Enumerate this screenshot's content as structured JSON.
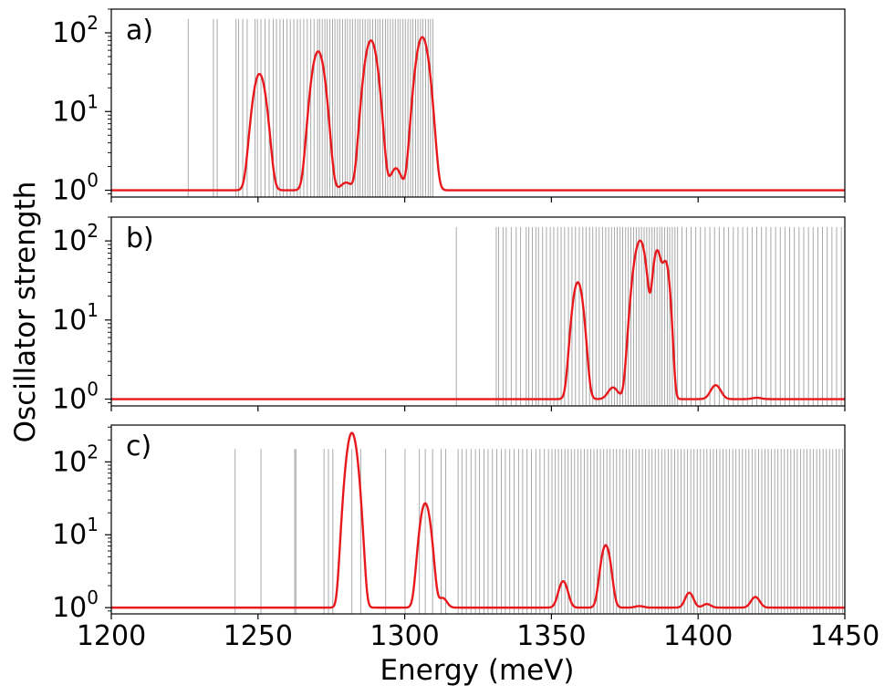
{
  "figure": {
    "ylabel": "Oscillator strength",
    "xlabel": "Energy (meV)"
  },
  "chart_data": [
    {
      "type": "line",
      "panel_label": "a)",
      "y_scale": "log",
      "xlim": [
        1200,
        1450
      ],
      "ylim": [
        0.82,
        200
      ],
      "y_ticks": [
        {
          "base": "10",
          "exp": "0"
        },
        {
          "base": "10",
          "exp": "1"
        },
        {
          "base": "10",
          "exp": "2"
        }
      ],
      "grid": false,
      "stick_height": 150,
      "stick_color": "#808080",
      "line_color": "#e8191c",
      "baseline": 1,
      "peaks": [
        {
          "x": 1250.5,
          "y": 30,
          "width": 1.8
        },
        {
          "x": 1270.5,
          "y": 58,
          "width": 1.8
        },
        {
          "x": 1280.0,
          "y": 1.25,
          "width": 1.6
        },
        {
          "x": 1288.5,
          "y": 80,
          "width": 1.8
        },
        {
          "x": 1297.0,
          "y": 1.9,
          "width": 1.6
        },
        {
          "x": 1306.0,
          "y": 88,
          "width": 1.8
        }
      ],
      "sticks": [
        1226.2,
        1234.8,
        1236.1,
        1242.5,
        1243.4,
        1244.8,
        1246.3,
        1249.0,
        1249.8,
        1251.0,
        1252.4,
        1253.8,
        1255.2,
        1256.3,
        1257.5,
        1258.6,
        1259.9,
        1261.0,
        1262.2,
        1263.4,
        1264.4,
        1265.6,
        1266.8,
        1268.0,
        1269.1,
        1270.3,
        1271.0,
        1271.9,
        1272.8,
        1273.6,
        1274.5,
        1275.4,
        1276.2,
        1277.1,
        1277.9,
        1278.8,
        1279.7,
        1280.5,
        1281.4,
        1282.2,
        1283.1,
        1284.0,
        1284.8,
        1285.7,
        1286.5,
        1287.4,
        1288.2,
        1289.1,
        1290.0,
        1290.8,
        1291.6,
        1292.5,
        1293.4,
        1294.2,
        1295.1,
        1296.0,
        1296.8,
        1297.7,
        1298.5,
        1299.4,
        1300.2,
        1301.1,
        1302.0,
        1302.8,
        1303.7,
        1304.5,
        1305.4,
        1306.2,
        1307.1,
        1308.0,
        1308.8,
        1309.6
      ]
    },
    {
      "type": "line",
      "panel_label": "b)",
      "y_scale": "log",
      "xlim": [
        1200,
        1450
      ],
      "ylim": [
        0.82,
        200
      ],
      "y_ticks": [
        {
          "base": "10",
          "exp": "0"
        },
        {
          "base": "10",
          "exp": "1"
        },
        {
          "base": "10",
          "exp": "2"
        }
      ],
      "grid": false,
      "stick_height": 150,
      "stick_color": "#808080",
      "line_color": "#e8191c",
      "baseline": 1,
      "peaks": [
        {
          "x": 1359.0,
          "y": 30,
          "width": 1.5
        },
        {
          "x": 1371.0,
          "y": 1.4,
          "width": 1.6
        },
        {
          "x": 1379.5,
          "y": 65,
          "width": 1.6
        },
        {
          "x": 1381.0,
          "y": 50,
          "width": 1.4
        },
        {
          "x": 1386.0,
          "y": 75,
          "width": 1.2
        },
        {
          "x": 1389.0,
          "y": 52,
          "width": 1.1
        },
        {
          "x": 1406.0,
          "y": 1.5,
          "width": 1.6
        },
        {
          "x": 1420.0,
          "y": 1.04,
          "width": 1.5
        }
      ],
      "sticks": [
        1317.6,
        1331.2,
        1332.0,
        1333.5,
        1334.6,
        1336.3,
        1338.0,
        1339.5,
        1341.4,
        1342.3,
        1343.5,
        1344.7,
        1345.6,
        1347.0,
        1348.3,
        1349.6,
        1350.8,
        1352.1,
        1353.3,
        1354.5,
        1355.8,
        1357.0,
        1358.2,
        1359.5,
        1360.7,
        1361.8,
        1363.0,
        1364.1,
        1365.2,
        1366.3,
        1367.4,
        1368.5,
        1369.5,
        1370.5,
        1371.5,
        1372.4,
        1373.4,
        1374.3,
        1375.3,
        1376.2,
        1377.1,
        1378.0,
        1378.9,
        1379.8,
        1380.7,
        1381.6,
        1382.5,
        1383.4,
        1384.3,
        1385.1,
        1386.0,
        1386.9,
        1387.7,
        1388.6,
        1389.5,
        1390.3,
        1391.2,
        1392.1,
        1393.0,
        1394.5,
        1396.0,
        1397.6,
        1399.2,
        1400.8,
        1402.4,
        1404.0,
        1405.6,
        1407.2,
        1408.8,
        1410.4,
        1412.0,
        1413.6,
        1415.2,
        1416.8,
        1418.4,
        1420.0,
        1421.6,
        1423.2,
        1424.8,
        1426.4,
        1428.0,
        1429.6,
        1431.2,
        1432.8,
        1434.4,
        1436.0,
        1437.6,
        1439.2,
        1440.8,
        1442.4,
        1444.0,
        1445.6,
        1447.2,
        1448.8
      ]
    },
    {
      "type": "line",
      "panel_label": "c)",
      "y_scale": "log",
      "xlim": [
        1200,
        1450
      ],
      "ylim": [
        0.82,
        320
      ],
      "y_ticks": [
        {
          "base": "10",
          "exp": "0"
        },
        {
          "base": "10",
          "exp": "1"
        },
        {
          "base": "10",
          "exp": "2"
        }
      ],
      "x_ticks": [
        1200,
        1250,
        1300,
        1350,
        1400,
        1450
      ],
      "grid": false,
      "stick_height": 150,
      "stick_color": "#808080",
      "line_color": "#e8191c",
      "baseline": 1,
      "peaks": [
        {
          "x": 1282.0,
          "y": 250,
          "width": 1.5
        },
        {
          "x": 1307.0,
          "y": 27,
          "width": 1.5
        },
        {
          "x": 1313.0,
          "y": 1.35,
          "width": 1.3
        },
        {
          "x": 1354.0,
          "y": 2.3,
          "width": 1.4
        },
        {
          "x": 1368.5,
          "y": 7.2,
          "width": 1.4
        },
        {
          "x": 1380.0,
          "y": 1.05,
          "width": 1.4
        },
        {
          "x": 1397.0,
          "y": 1.6,
          "width": 1.3
        },
        {
          "x": 1403.0,
          "y": 1.12,
          "width": 1.3
        },
        {
          "x": 1419.5,
          "y": 1.4,
          "width": 1.4
        }
      ],
      "sticks": [
        1242.2,
        1251.0,
        1262.5,
        1262.9,
        1272.5,
        1274.0,
        1275.5,
        1282.0,
        1285.0,
        1293.5,
        1300.1,
        1305.0,
        1307.0,
        1309.5,
        1312.4,
        1314.0,
        1318.2,
        1319.5,
        1321.0,
        1322.6,
        1324.1,
        1325.5,
        1327.0,
        1328.4,
        1329.9,
        1331.4,
        1332.9,
        1334.3,
        1335.8,
        1337.3,
        1338.8,
        1340.2,
        1341.7,
        1343.2,
        1344.7,
        1346.1,
        1347.6,
        1349.0,
        1350.2,
        1351.3,
        1352.4,
        1353.5,
        1354.6,
        1355.7,
        1356.8,
        1357.9,
        1359.0,
        1360.1,
        1361.2,
        1362.3,
        1363.4,
        1364.5,
        1365.6,
        1366.7,
        1367.8,
        1368.9,
        1370.0,
        1371.1,
        1372.2,
        1373.3,
        1374.4,
        1375.5,
        1376.6,
        1377.7,
        1378.8,
        1379.9,
        1381.0,
        1382.1,
        1383.2,
        1384.3,
        1385.4,
        1386.5,
        1387.6,
        1388.7,
        1389.8,
        1390.9,
        1392.0,
        1393.1,
        1394.2,
        1395.3,
        1396.4,
        1397.5,
        1398.6,
        1399.7,
        1400.8,
        1401.9,
        1403.0,
        1404.1,
        1405.2,
        1406.3,
        1407.4,
        1408.5,
        1409.6,
        1410.7,
        1411.8,
        1412.9,
        1414.0,
        1415.1,
        1416.2,
        1417.3,
        1418.4,
        1419.5,
        1420.6,
        1421.7,
        1422.8,
        1423.9,
        1425.0,
        1426.1,
        1427.2,
        1428.3,
        1429.4,
        1430.5,
        1431.6,
        1432.7,
        1433.8,
        1434.9,
        1436.0,
        1437.1,
        1438.2,
        1439.3,
        1440.4,
        1441.5,
        1442.6,
        1443.7,
        1444.8,
        1445.9,
        1447.0,
        1448.1,
        1449.2
      ]
    }
  ]
}
